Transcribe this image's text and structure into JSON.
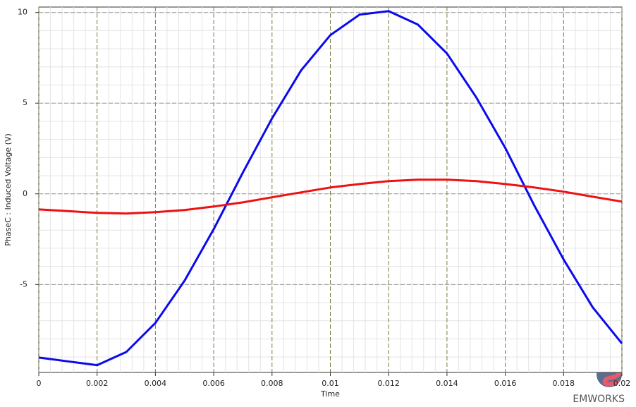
{
  "chart_data": {
    "type": "line",
    "x_label": "Time",
    "y_label": "PhaseC : Induced  Voltage (V)",
    "x": [
      0,
      0.001,
      0.002,
      0.003,
      0.004,
      0.005,
      0.006,
      0.007,
      0.008,
      0.009,
      0.01,
      0.011,
      0.012,
      0.013,
      0.014,
      0.015,
      0.016,
      0.017,
      0.018,
      0.019,
      0.02
    ],
    "series": [
      {
        "color": "#0a0aee",
        "values": [
          -9.03,
          -9.24,
          -9.45,
          -8.72,
          -7.12,
          -4.79,
          -1.95,
          1.17,
          4.16,
          6.81,
          8.75,
          9.88,
          10.08,
          9.34,
          7.74,
          5.33,
          2.53,
          -0.66,
          -3.62,
          -6.26,
          -8.25
        ]
      },
      {
        "color": "#ee1111",
        "values": [
          -0.86,
          -0.95,
          -1.05,
          -1.09,
          -1.01,
          -0.89,
          -0.7,
          -0.47,
          -0.19,
          0.08,
          0.35,
          0.54,
          0.7,
          0.78,
          0.78,
          0.7,
          0.54,
          0.35,
          0.12,
          -0.16,
          -0.43
        ]
      }
    ],
    "xlim": [
      0,
      0.02
    ],
    "xticks": [
      0,
      0.002,
      0.004,
      0.006,
      0.008,
      0.01,
      0.012,
      0.014,
      0.016,
      0.018,
      0.02
    ],
    "ylim": [
      -9.85,
      10.3
    ],
    "yticks": [
      -5,
      0,
      5,
      10
    ],
    "grid": true
  },
  "logo": "EMWORKS"
}
